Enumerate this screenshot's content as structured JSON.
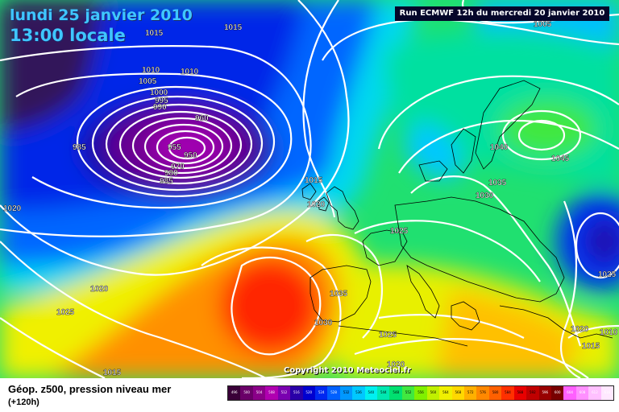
{
  "header": {
    "date": "lundi 25 janvier 2010",
    "time": "13:00 locale",
    "run": "Run ECMWF 12h du mercredi 20 janvier 2010"
  },
  "footer": {
    "copyright": "Copyright 2010 Meteociel.fr",
    "legend_title": "Géop. z500, pression niveau mer",
    "legend_sub": "(+120h)"
  },
  "scale": [
    {
      "label": "496",
      "color": "#3a0038"
    },
    {
      "label": "500",
      "color": "#6a0068"
    },
    {
      "label": "504",
      "color": "#8a0088"
    },
    {
      "label": "508",
      "color": "#b000b0"
    },
    {
      "label": "512",
      "color": "#7a00b0"
    },
    {
      "label": "516",
      "color": "#2a00a8"
    },
    {
      "label": "520",
      "color": "#0000d0"
    },
    {
      "label": "524",
      "color": "#0028f0"
    },
    {
      "label": "528",
      "color": "#0060ff"
    },
    {
      "label": "532",
      "color": "#0098ff"
    },
    {
      "label": "536",
      "color": "#00c8ff"
    },
    {
      "label": "540",
      "color": "#00f0f0"
    },
    {
      "label": "544",
      "color": "#00e8b0"
    },
    {
      "label": "548",
      "color": "#00e070"
    },
    {
      "label": "552",
      "color": "#40e840"
    },
    {
      "label": "556",
      "color": "#80f000"
    },
    {
      "label": "560",
      "color": "#c0f000"
    },
    {
      "label": "564",
      "color": "#f0f000"
    },
    {
      "label": "568",
      "color": "#ffd800"
    },
    {
      "label": "572",
      "color": "#ffb000"
    },
    {
      "label": "576",
      "color": "#ff8800"
    },
    {
      "label": "580",
      "color": "#ff6000"
    },
    {
      "label": "584",
      "color": "#ff3000"
    },
    {
      "label": "588",
      "color": "#e80000"
    },
    {
      "label": "592",
      "color": "#c00000"
    },
    {
      "label": "596",
      "color": "#980000"
    },
    {
      "label": "600",
      "color": "#780000"
    },
    {
      "label": "604",
      "color": "#ff60ff"
    },
    {
      "label": "608",
      "color": "#ff90ff"
    },
    {
      "label": "612",
      "color": "#ffc0ff"
    },
    {
      "label": "616",
      "color": "#ffe8ff"
    }
  ],
  "pressure_labels": [
    "1015",
    "1015",
    "1010",
    "1010",
    "1005",
    "1000",
    "995",
    "990",
    "985",
    "960",
    "955",
    "950",
    "970",
    "980",
    "985",
    "1020",
    "1015",
    "1020",
    "1020",
    "1025",
    "1015",
    "1005",
    "1040",
    "1045",
    "1035",
    "1030",
    "1025",
    "1025",
    "1035",
    "1030",
    "1025",
    "1020",
    "1020",
    "1015",
    "1010"
  ]
}
